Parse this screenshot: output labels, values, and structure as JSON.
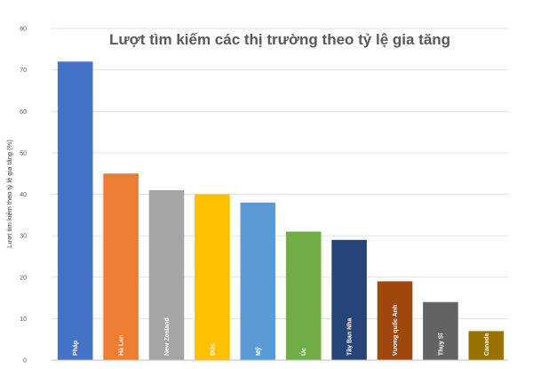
{
  "chart_data": {
    "type": "bar",
    "title": "Lượt tìm kiếm các thị trường theo tỷ lệ gia tăng",
    "ylabel": "Lượt tìm kiếm theo tỷ lệ gia tăng (%)",
    "xlabel": "",
    "ylim": [
      0,
      80
    ],
    "yticks": [
      0,
      10,
      20,
      30,
      40,
      50,
      60,
      70,
      80
    ],
    "grid": true,
    "legend": "none",
    "categories": [
      "Pháp",
      "Hà Lan",
      "New Zealand",
      "Đức",
      "Mỹ",
      "Úc",
      "Tây Ban Nha",
      "Vương quốc Anh",
      "Thụy Sĩ",
      "Canada"
    ],
    "values": [
      72,
      45,
      41,
      40,
      38,
      31,
      29,
      19,
      14,
      7
    ],
    "colors": [
      "#4472c4",
      "#ed7d31",
      "#a5a5a5",
      "#ffc000",
      "#5b9bd5",
      "#70ad47",
      "#264478",
      "#9e480e",
      "#636363",
      "#997300"
    ]
  }
}
